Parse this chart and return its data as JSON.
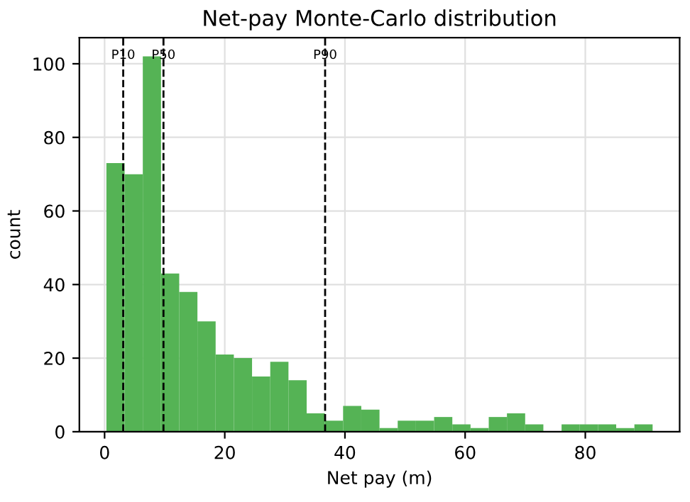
{
  "chart_data": {
    "type": "histogram",
    "title": "Net-pay Monte-Carlo distribution",
    "xlabel": "Net pay (m)",
    "ylabel": "count",
    "bins": [
      0.3,
      3.33,
      6.36,
      9.39,
      12.42,
      15.45,
      18.48,
      21.51,
      24.54,
      27.57,
      30.6,
      33.63,
      36.66,
      39.69,
      42.72,
      45.75,
      48.78,
      51.81,
      54.84,
      57.87,
      60.9,
      63.93,
      66.96,
      69.99,
      73.02,
      76.05,
      79.08,
      82.11,
      85.14,
      88.17,
      91.2
    ],
    "values": [
      73,
      70,
      102,
      43,
      38,
      30,
      21,
      20,
      15,
      19,
      14,
      5,
      3,
      7,
      6,
      1,
      3,
      3,
      4,
      2,
      1,
      4,
      5,
      2,
      0,
      2,
      2,
      2,
      1,
      2
    ],
    "color": "#55b355",
    "xlim": [
      -4.2,
      95.7
    ],
    "ylim": [
      0,
      107.1
    ],
    "xticks": [
      0,
      20,
      40,
      60,
      80
    ],
    "yticks": [
      0,
      20,
      40,
      60,
      80,
      100
    ],
    "grid": true,
    "ref_lines": [
      {
        "axis": "x",
        "value": 3.1,
        "label": "P10",
        "color": "#000000",
        "line_style": "dashed"
      },
      {
        "axis": "x",
        "value": 9.8,
        "label": "P50",
        "color": "#000000",
        "line_style": "dashed"
      },
      {
        "axis": "x",
        "value": 36.7,
        "label": "P90",
        "color": "#000000",
        "line_style": "dashed"
      }
    ]
  }
}
